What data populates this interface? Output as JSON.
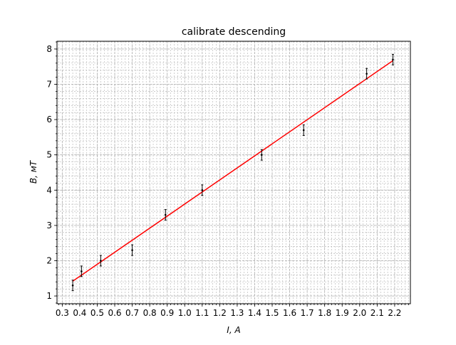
{
  "chart_data": {
    "type": "scatter",
    "title": "calibrate descending",
    "xlabel": "I, A",
    "ylabel": "B, мT",
    "xlim": [
      0.27,
      2.29
    ],
    "ylim": [
      0.78,
      8.22
    ],
    "grid": true,
    "x_ticks": [
      0.3,
      0.4,
      0.5,
      0.6,
      0.7,
      0.8,
      0.9,
      1.0,
      1.1,
      1.2,
      1.3,
      1.4,
      1.5,
      1.6,
      1.7,
      1.8,
      1.9,
      2.0,
      2.1,
      2.2
    ],
    "x_tick_labels": [
      "0.3",
      "0.4",
      "0.5",
      "0.6",
      "0.7",
      "0.8",
      "0.9",
      "1.0",
      "1.1",
      "1.2",
      "1.3",
      "1.4",
      "1.5",
      "1.6",
      "1.7",
      "1.8",
      "1.9",
      "2.0",
      "2.1",
      "2.2"
    ],
    "y_ticks": [
      1,
      2,
      3,
      4,
      5,
      6,
      7,
      8
    ],
    "y_tick_labels": [
      "1",
      "2",
      "3",
      "4",
      "5",
      "6",
      "7",
      "8"
    ],
    "series": [
      {
        "kind": "errorbar",
        "color": "#000000",
        "points": [
          {
            "x": 0.36,
            "y": 1.3,
            "yerr": 0.15
          },
          {
            "x": 0.41,
            "y": 1.7,
            "yerr": 0.15
          },
          {
            "x": 0.52,
            "y": 2.0,
            "yerr": 0.15
          },
          {
            "x": 0.7,
            "y": 2.3,
            "yerr": 0.15
          },
          {
            "x": 0.89,
            "y": 3.3,
            "yerr": 0.15
          },
          {
            "x": 1.1,
            "y": 4.0,
            "yerr": 0.15
          },
          {
            "x": 1.44,
            "y": 5.0,
            "yerr": 0.15
          },
          {
            "x": 1.68,
            "y": 5.7,
            "yerr": 0.15
          },
          {
            "x": 2.04,
            "y": 7.3,
            "yerr": 0.15
          },
          {
            "x": 2.19,
            "y": 7.7,
            "yerr": 0.15
          }
        ]
      },
      {
        "kind": "line",
        "color": "#ff0000",
        "x": [
          0.36,
          2.19
        ],
        "y": [
          1.42,
          7.67
        ]
      }
    ]
  }
}
